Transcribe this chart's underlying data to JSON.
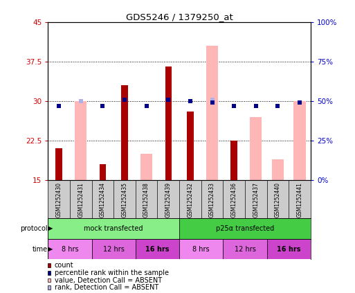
{
  "title": "GDS5246 / 1379250_at",
  "samples": [
    "GSM1252430",
    "GSM1252431",
    "GSM1252434",
    "GSM1252435",
    "GSM1252438",
    "GSM1252439",
    "GSM1252432",
    "GSM1252433",
    "GSM1252436",
    "GSM1252437",
    "GSM1252440",
    "GSM1252441"
  ],
  "count_values": [
    21.0,
    null,
    18.0,
    33.0,
    null,
    36.5,
    28.0,
    null,
    22.5,
    null,
    null,
    null
  ],
  "rank_pct": [
    47.0,
    null,
    47.0,
    51.0,
    47.0,
    51.0,
    50.0,
    49.0,
    47.0,
    47.0,
    47.0,
    49.0
  ],
  "absent_count_values": [
    null,
    30.0,
    null,
    null,
    20.0,
    null,
    null,
    40.5,
    null,
    27.0,
    19.0,
    30.0
  ],
  "absent_rank_pct": [
    null,
    50.0,
    null,
    51.0,
    47.0,
    null,
    null,
    51.0,
    null,
    47.0,
    47.0,
    null
  ],
  "ylim_left": [
    15,
    45
  ],
  "ylim_right": [
    0,
    100
  ],
  "yticks_left": [
    15,
    22.5,
    30,
    37.5,
    45
  ],
  "yticks_right": [
    0,
    25,
    50,
    75,
    100
  ],
  "ytick_labels_left": [
    "15",
    "22.5",
    "30",
    "37.5",
    "45"
  ],
  "ytick_labels_right": [
    "0%",
    "25%",
    "50%",
    "75%",
    "100%"
  ],
  "color_count": "#aa0000",
  "color_rank": "#00008b",
  "color_absent_count": "#ffb6b6",
  "color_absent_rank": "#b0b0e8",
  "protocol_groups": [
    {
      "label": "mock transfected",
      "start": 0,
      "end": 6,
      "color": "#88ee88"
    },
    {
      "label": "p25α transfected",
      "start": 6,
      "end": 12,
      "color": "#44cc44"
    }
  ],
  "time_groups": [
    {
      "label": "8 hrs",
      "start": 0,
      "end": 2,
      "color": "#ee88ee"
    },
    {
      "label": "12 hrs",
      "start": 2,
      "end": 4,
      "color": "#dd66dd"
    },
    {
      "label": "16 hrs",
      "start": 4,
      "end": 6,
      "color": "#cc44cc"
    },
    {
      "label": "8 hrs",
      "start": 6,
      "end": 8,
      "color": "#ee88ee"
    },
    {
      "label": "12 hrs",
      "start": 8,
      "end": 10,
      "color": "#dd66dd"
    },
    {
      "label": "16 hrs",
      "start": 10,
      "end": 12,
      "color": "#cc44cc"
    }
  ],
  "sample_bg_color": "#cccccc",
  "axis_bg_color": "#ffffff"
}
